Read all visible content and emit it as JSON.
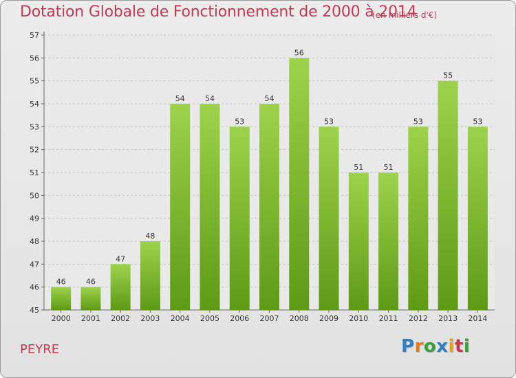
{
  "chart_data": {
    "type": "bar",
    "title": "Dotation Globale de Fonctionnement de 2000 à 2014",
    "subtitle": "(en milliers d'€)",
    "categories": [
      "2000",
      "2001",
      "2002",
      "2003",
      "2004",
      "2005",
      "2006",
      "2007",
      "2008",
      "2009",
      "2010",
      "2011",
      "2012",
      "2013",
      "2014"
    ],
    "values": [
      46,
      46,
      47,
      48,
      54,
      54,
      53,
      54,
      56,
      53,
      51,
      51,
      53,
      55,
      53
    ],
    "ylim": [
      45,
      57
    ],
    "yticks": [
      45,
      46,
      47,
      48,
      49,
      50,
      51,
      52,
      53,
      54,
      55,
      56,
      57
    ],
    "xlabel": "",
    "ylabel": "",
    "grid": true,
    "bar_color_top": "#9dd24c",
    "bar_color_bottom": "#5e9a14"
  },
  "footer": {
    "commune": "PEYRE",
    "logo": "Proxiti"
  },
  "colors": {
    "title": "#c43a52",
    "logo_letters": [
      "#2f7fc1",
      "#e77a1f",
      "#3aa23a",
      "#2f7fc1",
      "#e1a21a",
      "#c43a52",
      "#3aa23a"
    ]
  }
}
